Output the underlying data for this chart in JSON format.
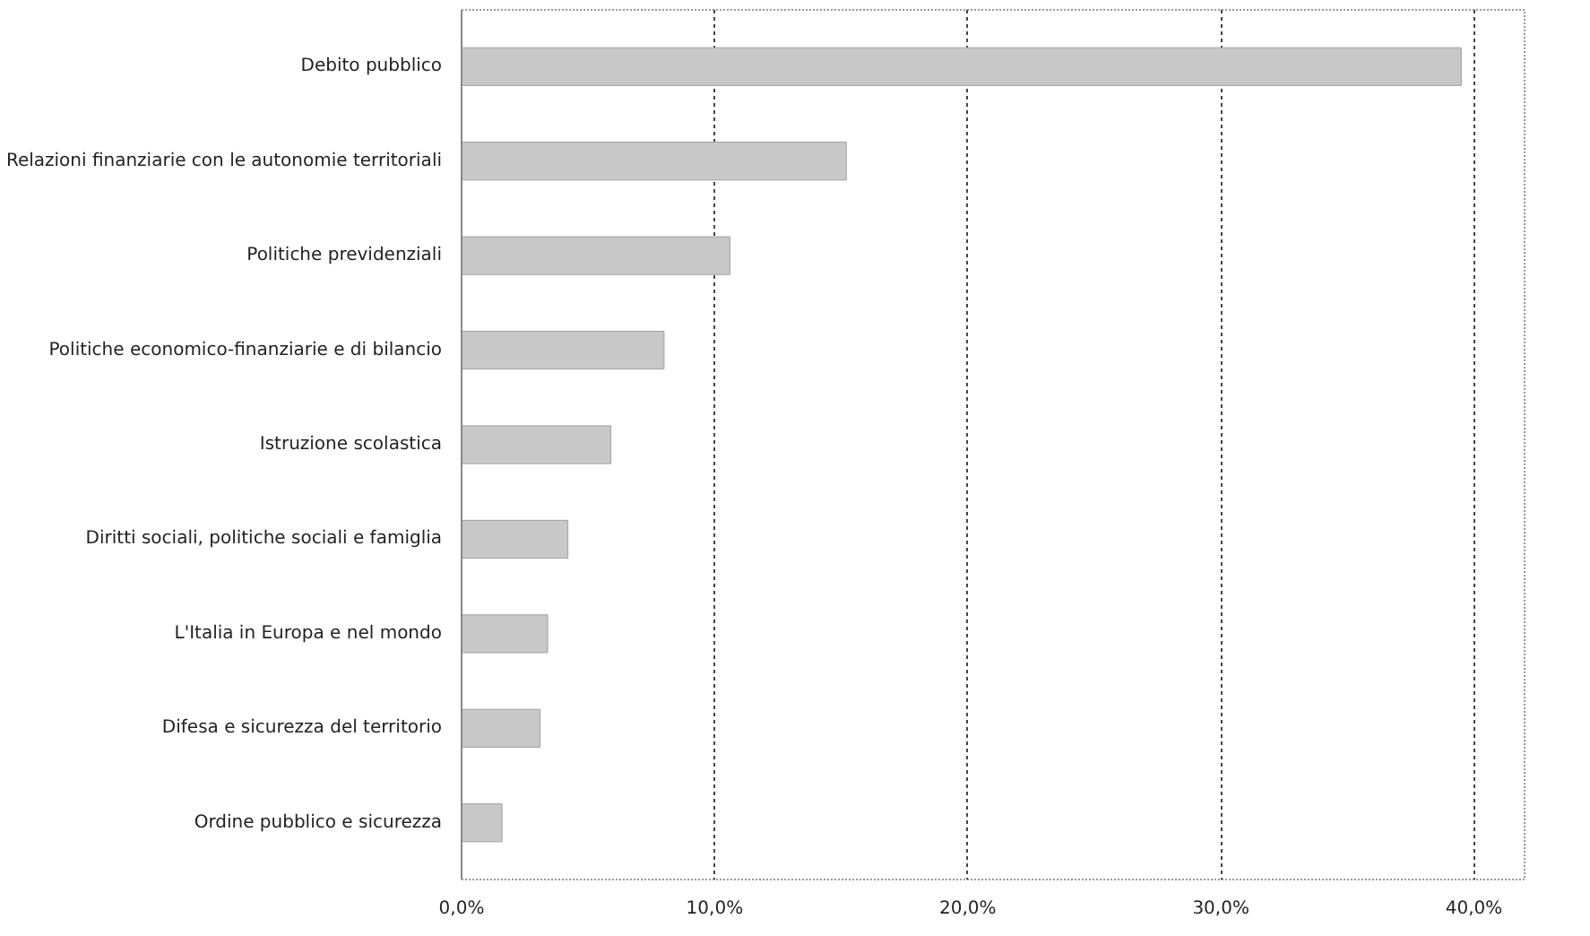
{
  "chart_data": {
    "type": "bar",
    "orientation": "horizontal",
    "categories": [
      "Debito pubblico",
      "Relazioni finanziarie con le autonomie territoriali",
      "Politiche previdenziali",
      "Politiche economico-finanziarie e di bilancio",
      "Istruzione scolastica",
      "Diritti sociali, politiche sociali e famiglia",
      "L'Italia in Europa e nel mondo",
      "Difesa e sicurezza del territorio",
      "Ordine pubblico e sicurezza"
    ],
    "values": [
      39.5,
      15.2,
      10.6,
      8.0,
      5.9,
      4.2,
      3.4,
      3.1,
      1.6
    ],
    "color": "#c8c8c8",
    "xlim": [
      0,
      42
    ],
    "xticks": [
      {
        "value": 0,
        "label": "0,0%"
      },
      {
        "value": 10,
        "label": "10,0%"
      },
      {
        "value": 20,
        "label": "20,0%"
      },
      {
        "value": 30,
        "label": "30,0%"
      },
      {
        "value": 40,
        "label": "40,0%"
      }
    ],
    "grid": "x"
  }
}
